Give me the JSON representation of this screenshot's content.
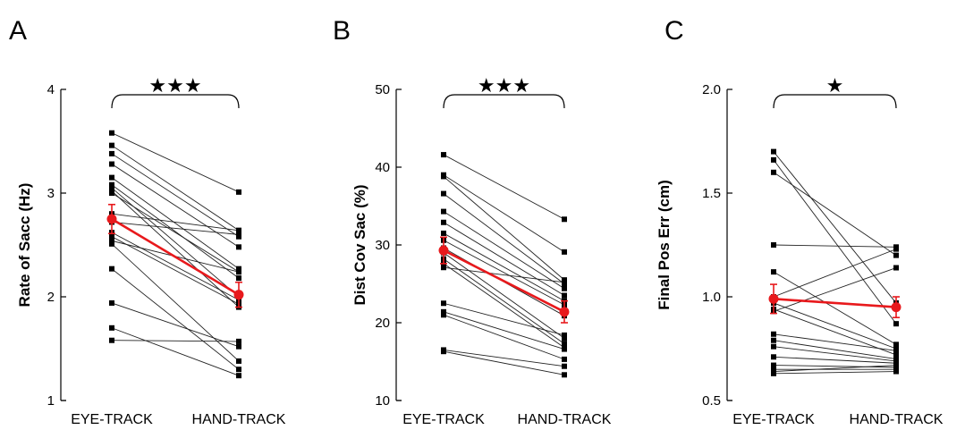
{
  "chart_data": [
    {
      "type": "line",
      "panel_letter": "A",
      "ylabel": "Rate of Sacc (Hz)",
      "categories": [
        "EYE-TRACK",
        "HAND-TRACK"
      ],
      "ylim": [
        1,
        4
      ],
      "yticks": [
        "1",
        "2",
        "3",
        "4"
      ],
      "significance": "★★★",
      "subjects": [
        [
          3.58,
          3.01
        ],
        [
          3.46,
          2.64
        ],
        [
          3.38,
          2.58
        ],
        [
          3.28,
          2.48
        ],
        [
          3.15,
          2.27
        ],
        [
          3.08,
          2.18
        ],
        [
          3.05,
          2.0
        ],
        [
          3.02,
          1.9
        ],
        [
          3.0,
          2.24
        ],
        [
          2.8,
          2.64
        ],
        [
          2.72,
          2.6
        ],
        [
          2.62,
          1.97
        ],
        [
          2.58,
          1.93
        ],
        [
          2.54,
          2.24
        ],
        [
          2.51,
          1.38
        ],
        [
          2.27,
          1.3
        ],
        [
          1.94,
          1.52
        ],
        [
          1.7,
          1.24
        ],
        [
          1.58,
          1.57
        ]
      ],
      "mean": [
        2.75,
        2.02
      ],
      "error": [
        0.14,
        0.12
      ]
    },
    {
      "type": "line",
      "panel_letter": "B",
      "ylabel": "Dist Cov Sac (%)",
      "categories": [
        "EYE-TRACK",
        "HAND-TRACK"
      ],
      "ylim": [
        10,
        50
      ],
      "yticks": [
        "10",
        "20",
        "30",
        "40",
        "50"
      ],
      "significance": "★★★",
      "subjects": [
        [
          41.6,
          33.3
        ],
        [
          39.0,
          29.1
        ],
        [
          38.8,
          25.5
        ],
        [
          36.6,
          25.0
        ],
        [
          34.3,
          24.4
        ],
        [
          32.9,
          23.5
        ],
        [
          31.5,
          22.8
        ],
        [
          30.6,
          22.3
        ],
        [
          29.6,
          20.9
        ],
        [
          29.0,
          18.0
        ],
        [
          28.2,
          17.3
        ],
        [
          27.6,
          16.8
        ],
        [
          27.1,
          25.2
        ],
        [
          22.5,
          18.4
        ],
        [
          21.4,
          16.6
        ],
        [
          21.0,
          15.3
        ],
        [
          16.5,
          14.4
        ],
        [
          16.3,
          13.3
        ]
      ],
      "mean": [
        29.3,
        21.4
      ],
      "error": [
        1.7,
        1.4
      ]
    },
    {
      "type": "line",
      "panel_letter": "C",
      "ylabel": "Final Pos Err (cm)",
      "categories": [
        "EYE-TRACK",
        "HAND-TRACK"
      ],
      "ylim": [
        0.5,
        2.0
      ],
      "yticks": [
        "0.5",
        "1.0",
        "1.5",
        "2.0"
      ],
      "significance": "★",
      "subjects": [
        [
          1.7,
          0.97
        ],
        [
          1.66,
          0.87
        ],
        [
          1.6,
          1.2
        ],
        [
          1.25,
          1.24
        ],
        [
          1.12,
          0.77
        ],
        [
          1.0,
          1.23
        ],
        [
          0.97,
          0.75
        ],
        [
          0.94,
          0.72
        ],
        [
          0.93,
          1.14
        ],
        [
          0.82,
          0.74
        ],
        [
          0.79,
          0.7
        ],
        [
          0.76,
          0.69
        ],
        [
          0.71,
          0.68
        ],
        [
          0.67,
          0.66
        ],
        [
          0.65,
          0.65
        ],
        [
          0.64,
          0.67
        ],
        [
          0.63,
          0.64
        ]
      ],
      "mean": [
        0.99,
        0.95
      ],
      "error": [
        0.07,
        0.05
      ]
    }
  ]
}
